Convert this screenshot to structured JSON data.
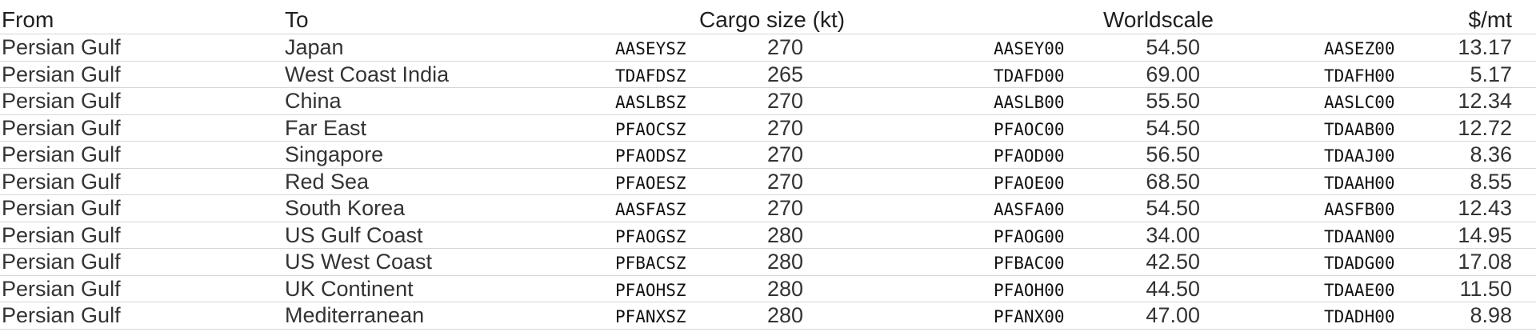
{
  "headers": {
    "from": "From",
    "to": "To",
    "cargo": "Cargo size (kt)",
    "worldscale": "Worldscale",
    "per_mt": "$/mt"
  },
  "rows": [
    {
      "from": "Persian Gulf",
      "to": "Japan",
      "cargo_code": "AASEYSZ",
      "cargo": "270",
      "ws_code": "AASEY00",
      "ws": "54.50",
      "mt_code": "AASEZ00",
      "mt": "13.17"
    },
    {
      "from": "Persian Gulf",
      "to": "West Coast India",
      "cargo_code": "TDAFDSZ",
      "cargo": "265",
      "ws_code": "TDAFD00",
      "ws": "69.00",
      "mt_code": "TDAFH00",
      "mt": "5.17"
    },
    {
      "from": "Persian Gulf",
      "to": "China",
      "cargo_code": "AASLBSZ",
      "cargo": "270",
      "ws_code": "AASLB00",
      "ws": "55.50",
      "mt_code": "AASLC00",
      "mt": "12.34"
    },
    {
      "from": "Persian Gulf",
      "to": "Far East",
      "cargo_code": "PFAOCSZ",
      "cargo": "270",
      "ws_code": "PFAOC00",
      "ws": "54.50",
      "mt_code": "TDAAB00",
      "mt": "12.72"
    },
    {
      "from": "Persian Gulf",
      "to": "Singapore",
      "cargo_code": "PFAODSZ",
      "cargo": "270",
      "ws_code": "PFAOD00",
      "ws": "56.50",
      "mt_code": "TDAAJ00",
      "mt": "8.36"
    },
    {
      "from": "Persian Gulf",
      "to": "Red Sea",
      "cargo_code": "PFAOESZ",
      "cargo": "270",
      "ws_code": "PFAOE00",
      "ws": "68.50",
      "mt_code": "TDAAH00",
      "mt": "8.55"
    },
    {
      "from": "Persian Gulf",
      "to": "South Korea",
      "cargo_code": "AASFASZ",
      "cargo": "270",
      "ws_code": "AASFA00",
      "ws": "54.50",
      "mt_code": "AASFB00",
      "mt": "12.43"
    },
    {
      "from": "Persian Gulf",
      "to": "US Gulf Coast",
      "cargo_code": "PFAOGSZ",
      "cargo": "280",
      "ws_code": "PFAOG00",
      "ws": "34.00",
      "mt_code": "TDAAN00",
      "mt": "14.95"
    },
    {
      "from": "Persian Gulf",
      "to": "US West Coast",
      "cargo_code": "PFBACSZ",
      "cargo": "280",
      "ws_code": "PFBAC00",
      "ws": "42.50",
      "mt_code": "TDADG00",
      "mt": "17.08"
    },
    {
      "from": "Persian Gulf",
      "to": "UK Continent",
      "cargo_code": "PFAOHSZ",
      "cargo": "280",
      "ws_code": "PFAOH00",
      "ws": "44.50",
      "mt_code": "TDAAE00",
      "mt": "11.50"
    },
    {
      "from": "Persian Gulf",
      "to": "Mediterranean",
      "cargo_code": "PFANXSZ",
      "cargo": "280",
      "ws_code": "PFANX00",
      "ws": "47.00",
      "mt_code": "TDADH00",
      "mt": "8.98"
    }
  ]
}
